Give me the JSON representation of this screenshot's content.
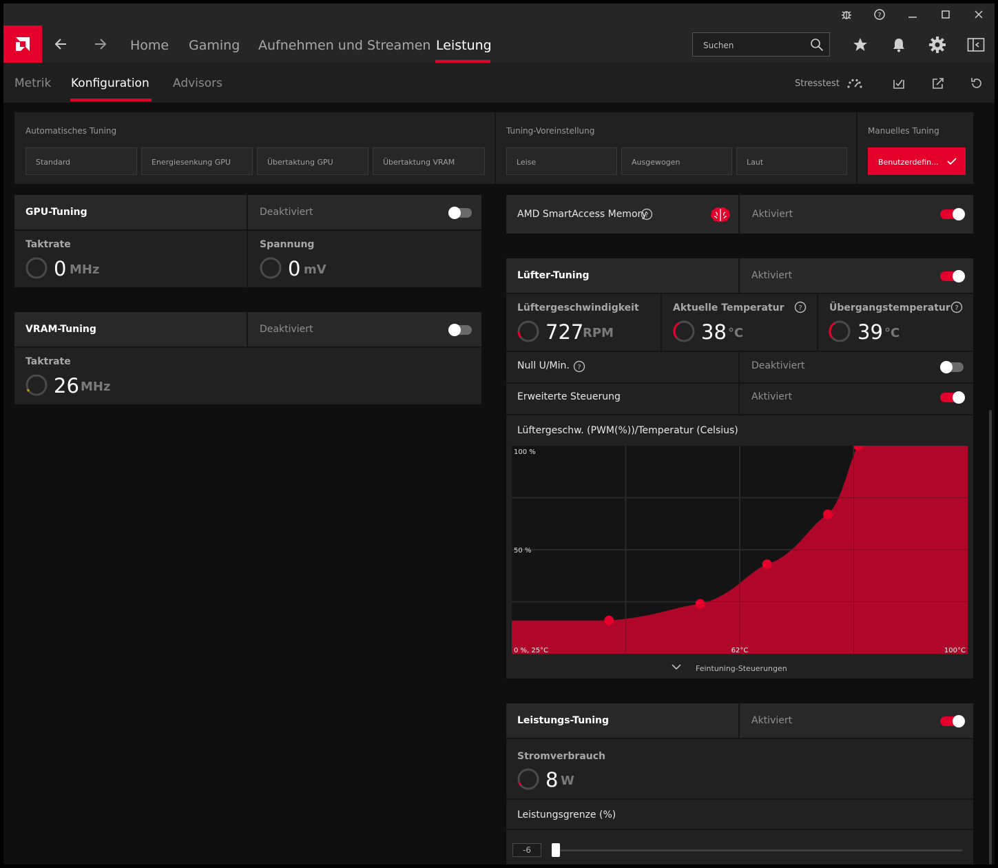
{
  "window": {
    "title_icons": [
      "bug-icon",
      "help-icon",
      "minimize-icon",
      "maximize-icon",
      "close-icon"
    ]
  },
  "nav": {
    "items": [
      "Home",
      "Gaming",
      "Aufnehmen und Streamen",
      "Leistung"
    ],
    "active": "Leistung",
    "search_placeholder": "Suchen",
    "icons": [
      "star-icon",
      "bell-icon",
      "gear-icon",
      "sidebar-icon"
    ]
  },
  "subnav": {
    "items": [
      "Metrik",
      "Konfiguration",
      "Advisors"
    ],
    "active": "Konfiguration",
    "stress_label": "Stresstest",
    "icons": [
      "gauge-icon",
      "import-icon",
      "export-icon",
      "reset-icon"
    ]
  },
  "tuning": {
    "auto_label": "Automatisches Tuning",
    "auto_buttons": [
      "Standard",
      "Energiesenkung GPU",
      "Übertaktung GPU",
      "Übertaktung VRAM"
    ],
    "preset_label": "Tuning-Voreinstellung",
    "preset_buttons": [
      "Leise",
      "Ausgewogen",
      "Laut"
    ],
    "manual_label": "Manuelles Tuning",
    "manual_button": "Benutzerdefin..."
  },
  "gpu_tuning": {
    "title": "GPU-Tuning",
    "state": "Deaktiviert",
    "enabled": false,
    "clock_label": "Taktrate",
    "clock_value": "0",
    "clock_unit": "MHz",
    "voltage_label": "Spannung",
    "voltage_value": "0",
    "voltage_unit": "mV"
  },
  "vram_tuning": {
    "title": "VRAM-Tuning",
    "state": "Deaktiviert",
    "enabled": false,
    "clock_label": "Taktrate",
    "clock_value": "26",
    "clock_unit": "MHz"
  },
  "smart_access": {
    "title": "AMD SmartAccess Memory",
    "state": "Aktiviert",
    "enabled": true
  },
  "fan_tuning": {
    "title": "Lüfter-Tuning",
    "state": "Aktiviert",
    "enabled": true,
    "speed_label": "Lüftergeschwindigkeit",
    "speed_value": "727",
    "speed_unit": "RPM",
    "temp_label": "Aktuelle Temperatur",
    "temp_value": "38",
    "temp_unit": "°C",
    "junction_label": "Übergangstemperatur",
    "junction_value": "39",
    "junction_unit": "°C",
    "zero_rpm_label": "Null U/Min.",
    "zero_rpm_state": "Deaktiviert",
    "zero_rpm_enabled": false,
    "advanced_label": "Erweiterte Steuerung",
    "advanced_state": "Aktiviert",
    "advanced_enabled": true,
    "curve_title": "Lüftergeschw. (PWM(%))/Temperatur (Celsius)",
    "fine_tuning": "Feintuning-Steuerungen"
  },
  "chart_data": {
    "type": "area",
    "title": "Lüftergeschw. (PWM(%))/Temperatur (Celsius)",
    "x_tick_labels": [
      "0 %, 25°C",
      "62°C",
      "100°C"
    ],
    "y_tick_labels": [
      "100 %",
      "50 %"
    ],
    "xlim": [
      25,
      100
    ],
    "ylim": [
      0,
      100
    ],
    "points": [
      {
        "x": 25,
        "y": 16
      },
      {
        "x": 41,
        "y": 16
      },
      {
        "x": 56,
        "y": 24
      },
      {
        "x": 67,
        "y": 43
      },
      {
        "x": 77,
        "y": 67
      },
      {
        "x": 82,
        "y": 100
      },
      {
        "x": 100,
        "y": 100
      }
    ],
    "handles": [
      {
        "x": 41,
        "y": 16
      },
      {
        "x": 56,
        "y": 24
      },
      {
        "x": 67,
        "y": 43
      },
      {
        "x": 77,
        "y": 67
      },
      {
        "x": 82,
        "y": 100
      }
    ],
    "grid": true,
    "fill_color": "#b0062a",
    "handle_color": "#e4002b"
  },
  "power_tuning": {
    "title": "Leistungs-Tuning",
    "state": "Aktiviert",
    "enabled": true,
    "power_label": "Stromverbrauch",
    "power_value": "8",
    "power_unit": "W",
    "limit_label": "Leistungsgrenze (%)",
    "limit_value": "-6",
    "limit_range": [
      -6,
      15
    ]
  }
}
